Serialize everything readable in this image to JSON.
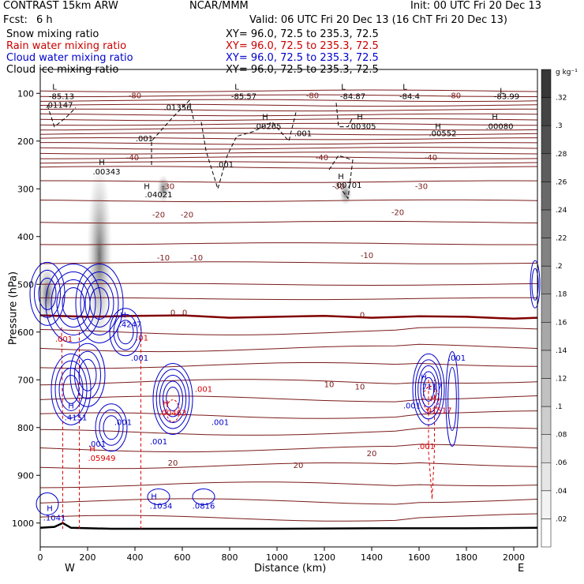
{
  "header": {
    "model": "CONTRAST 15km ARW",
    "org": "NCAR/MMM",
    "init": "Init: 00 UTC Fri 20 Dec 13",
    "fcst_label": "Fcst:",
    "fcst_value": "6 h",
    "valid": "Valid: 06 UTC Fri 20 Dec 13 (16 ChT Fri 20 Dec 13)"
  },
  "fields": [
    {
      "name": "Snow mixing ratio",
      "xy": "XY=  96.0, 72.5 to 235.3, 72.5",
      "color": "#000000"
    },
    {
      "name": "Rain water mixing ratio",
      "xy": "XY=  96.0, 72.5 to 235.3, 72.5",
      "color": "#cc0000"
    },
    {
      "name": "Cloud water mixing ratio",
      "xy": "XY=  96.0, 72.5 to 235.3, 72.5",
      "color": "#0000cc"
    },
    {
      "name": "Cloud ice mixing ratio",
      "xy": "XY=  96.0, 72.5 to 235.3, 72.5",
      "color": "#000000"
    }
  ],
  "colors": {
    "temperature": "#7a1a1a",
    "freezing": "#800000",
    "rain": "#dd0000",
    "cloud_water": "#0000cc",
    "ice": "#000000",
    "terrain": "#000000"
  },
  "chart_data": {
    "type": "contour",
    "xlabel": "Distance (km)",
    "ylabel": "Pressure (hPa)",
    "xlim": [
      0,
      2100
    ],
    "ylim": [
      1050,
      50
    ],
    "y_scale": "linear",
    "x_ticks": [
      0,
      200,
      400,
      600,
      800,
      1000,
      1200,
      1400,
      1600,
      1800,
      2000
    ],
    "y_ticks": [
      100,
      200,
      300,
      400,
      500,
      600,
      700,
      800,
      900,
      1000
    ],
    "x_ends": {
      "left": "W",
      "right": "E"
    },
    "colorbar": {
      "unit": "g kg⁻¹",
      "ticks": [
        ".02",
        ".04",
        ".06",
        ".08",
        ".1",
        ".12",
        ".14",
        ".16",
        ".18",
        ".2",
        ".22",
        ".24",
        ".26",
        ".28",
        ".3",
        ".32"
      ],
      "min": 0,
      "max": 0.34
    },
    "temperature_labels": [
      {
        "text": "-80",
        "x": 400,
        "p": 110
      },
      {
        "text": "-80",
        "x": 1150,
        "p": 110
      },
      {
        "text": "-80",
        "x": 1750,
        "p": 110
      },
      {
        "text": "-40",
        "x": 390,
        "p": 240
      },
      {
        "text": "-40",
        "x": 1190,
        "p": 240
      },
      {
        "text": "-40",
        "x": 1650,
        "p": 240
      },
      {
        "text": "-30",
        "x": 540,
        "p": 300
      },
      {
        "text": "-30",
        "x": 1260,
        "p": 300
      },
      {
        "text": "-30",
        "x": 1610,
        "p": 300
      },
      {
        "text": "-20",
        "x": 500,
        "p": 360
      },
      {
        "text": "-20",
        "x": 620,
        "p": 360
      },
      {
        "text": "-20",
        "x": 1510,
        "p": 355
      },
      {
        "text": "-10",
        "x": 520,
        "p": 450
      },
      {
        "text": "-10",
        "x": 660,
        "p": 450
      },
      {
        "text": "-10",
        "x": 1380,
        "p": 445
      },
      {
        "text": "0",
        "x": 560,
        "p": 565
      },
      {
        "text": "0",
        "x": 610,
        "p": 565
      },
      {
        "text": "0",
        "x": 1360,
        "p": 570
      },
      {
        "text": "10",
        "x": 1220,
        "p": 715
      },
      {
        "text": "10",
        "x": 1350,
        "p": 720
      },
      {
        "text": "20",
        "x": 560,
        "p": 880
      },
      {
        "text": "20",
        "x": 1090,
        "p": 885
      },
      {
        "text": "20",
        "x": 1400,
        "p": 860
      }
    ],
    "ice_labels": [
      {
        "text": "L",
        "x": 60,
        "p": 92
      },
      {
        "text": "-85.13",
        "x": 90,
        "p": 112
      },
      {
        "text": "L",
        "x": 830,
        "p": 92
      },
      {
        "text": "-85.57",
        "x": 860,
        "p": 112
      },
      {
        "text": "L",
        "x": 1280,
        "p": 92
      },
      {
        "text": "-84.87",
        "x": 1320,
        "p": 112
      },
      {
        "text": "L",
        "x": 1540,
        "p": 92
      },
      {
        "text": "-84.4",
        "x": 1560,
        "p": 112
      },
      {
        "text": "L",
        "x": 1950,
        "p": 100
      },
      {
        "text": "-83.99",
        "x": 1970,
        "p": 112
      },
      {
        "text": ".01147",
        "x": 80,
        "p": 130
      },
      {
        "text": ".01356",
        "x": 580,
        "p": 135
      },
      {
        "text": "H",
        "x": 950,
        "p": 155
      },
      {
        "text": ".00265",
        "x": 960,
        "p": 175
      },
      {
        "text": "H",
        "x": 1350,
        "p": 155
      },
      {
        "text": ".00305",
        "x": 1360,
        "p": 175
      },
      {
        "text": "H",
        "x": 1680,
        "p": 175
      },
      {
        "text": ".00552",
        "x": 1700,
        "p": 190
      },
      {
        "text": "H",
        "x": 1920,
        "p": 155
      },
      {
        "text": ".00080",
        "x": 1940,
        "p": 175
      },
      {
        "text": ".001",
        "x": 440,
        "p": 200
      },
      {
        "text": ".001",
        "x": 1110,
        "p": 190
      },
      {
        "text": ".001",
        "x": 780,
        "p": 255
      },
      {
        "text": "H",
        "x": 260,
        "p": 250
      },
      {
        "text": ".00343",
        "x": 280,
        "p": 270
      },
      {
        "text": "H",
        "x": 450,
        "p": 300
      },
      {
        "text": ".04021",
        "x": 500,
        "p": 318
      },
      {
        "text": "H",
        "x": 1270,
        "p": 280
      },
      {
        "text": ".00701",
        "x": 1300,
        "p": 298
      }
    ],
    "rain_labels": [
      {
        "text": ".001",
        "x": 100,
        "p": 620
      },
      {
        "text": ".01",
        "x": 430,
        "p": 618
      },
      {
        "text": ".001",
        "x": 690,
        "p": 725
      },
      {
        "text": "H",
        "x": 530,
        "p": 755
      },
      {
        "text": ".00463",
        "x": 560,
        "p": 775
      },
      {
        "text": "H",
        "x": 220,
        "p": 850
      },
      {
        "text": ".05949",
        "x": 260,
        "p": 870
      },
      {
        "text": "H",
        "x": 1660,
        "p": 745
      },
      {
        "text": ".01517",
        "x": 1680,
        "p": 770
      },
      {
        "text": ".001",
        "x": 1630,
        "p": 845
      }
    ],
    "cloud_water_labels": [
      {
        "text": "H",
        "x": 350,
        "p": 570
      },
      {
        "text": ".4247",
        "x": 380,
        "p": 590
      },
      {
        "text": ".001",
        "x": 420,
        "p": 660
      },
      {
        "text": ".001",
        "x": 1760,
        "p": 660
      },
      {
        "text": "H",
        "x": 1620,
        "p": 700
      },
      {
        "text": ".7117",
        "x": 1650,
        "p": 720
      },
      {
        "text": ".001",
        "x": 1570,
        "p": 760
      },
      {
        "text": "H",
        "x": 130,
        "p": 760
      },
      {
        "text": ".4151",
        "x": 150,
        "p": 785
      },
      {
        "text": ".001",
        "x": 350,
        "p": 795
      },
      {
        "text": ".001",
        "x": 760,
        "p": 795
      },
      {
        "text": ".001",
        "x": 240,
        "p": 840
      },
      {
        "text": ".001",
        "x": 500,
        "p": 835
      },
      {
        "text": "H",
        "x": 480,
        "p": 950
      },
      {
        "text": ".1034",
        "x": 510,
        "p": 970
      },
      {
        "text": ".0816",
        "x": 690,
        "p": 970
      },
      {
        "text": "H",
        "x": 40,
        "p": 975
      },
      {
        "text": ".1041",
        "x": 60,
        "p": 995
      }
    ],
    "temperature_levels": [
      {
        "label": "-80",
        "p": [
          95,
          118,
          110,
          114,
          108
        ]
      },
      {
        "label": "-80b",
        "p": [
          122,
          128,
          125,
          126,
          124
        ]
      }
    ],
    "terrain": [
      [
        0,
        1010
      ],
      [
        60,
        1008
      ],
      [
        95,
        1000
      ],
      [
        130,
        1010
      ],
      [
        300,
        1012
      ],
      [
        600,
        1012
      ],
      [
        1000,
        1012
      ],
      [
        1400,
        1011
      ],
      [
        1800,
        1011
      ],
      [
        2100,
        1010
      ]
    ],
    "freezing_level": [
      [
        0,
        565
      ],
      [
        200,
        568
      ],
      [
        400,
        566
      ],
      [
        600,
        565
      ],
      [
        800,
        570
      ],
      [
        1000,
        568
      ],
      [
        1200,
        566
      ],
      [
        1400,
        570
      ],
      [
        1600,
        567
      ],
      [
        1800,
        568
      ],
      [
        2000,
        572
      ],
      [
        2100,
        570
      ]
    ]
  }
}
